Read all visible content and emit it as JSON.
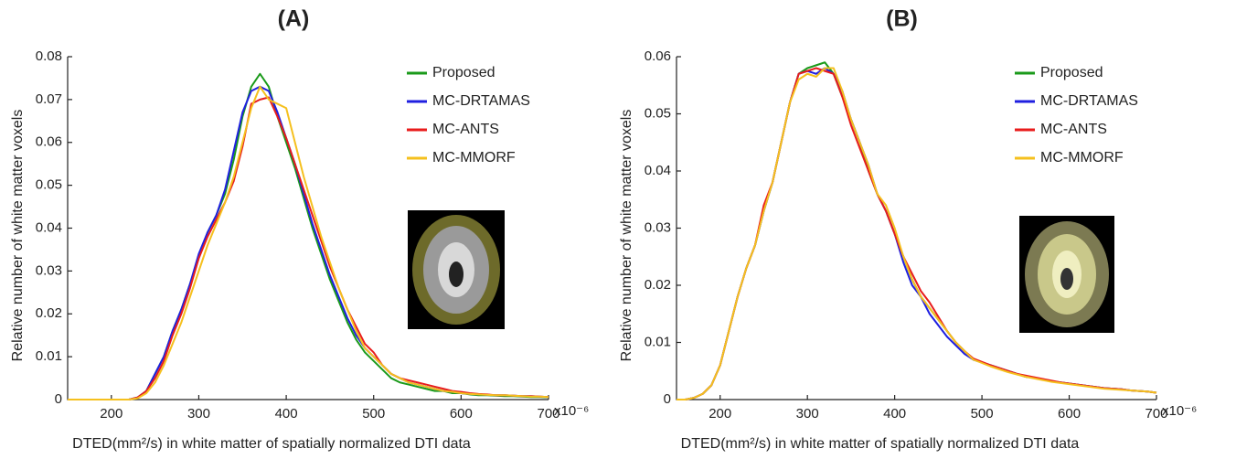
{
  "chart_data": [
    {
      "type": "line",
      "title": "(A)",
      "xlabel": "DTED(mm²/s) in white matter of spatially normalized DTI data",
      "xlabel_offset": "x10⁻⁶",
      "ylabel": "Relative number of white matter voxels",
      "xlim": [
        150,
        700
      ],
      "xticks": [
        200,
        300,
        400,
        500,
        600,
        700
      ],
      "ylim": [
        0,
        0.08
      ],
      "yticks": [
        0,
        0.01,
        0.02,
        0.03,
        0.04,
        0.05,
        0.06,
        0.07,
        0.08
      ],
      "legend": "upper right",
      "x": [
        150,
        160,
        170,
        180,
        190,
        200,
        210,
        220,
        230,
        240,
        250,
        260,
        270,
        280,
        290,
        300,
        310,
        320,
        330,
        340,
        350,
        360,
        370,
        380,
        390,
        400,
        410,
        420,
        430,
        440,
        450,
        460,
        470,
        480,
        490,
        500,
        510,
        520,
        530,
        540,
        550,
        560,
        570,
        580,
        590,
        600,
        610,
        620,
        630,
        640,
        650,
        660,
        670,
        680,
        690,
        700
      ],
      "series": [
        {
          "name": "Proposed",
          "color": "#1a9a1a",
          "values": [
            0,
            0,
            0,
            0,
            0,
            0,
            0,
            0,
            0.0005,
            0.002,
            0.006,
            0.01,
            0.016,
            0.021,
            0.027,
            0.033,
            0.039,
            0.043,
            0.048,
            0.056,
            0.066,
            0.073,
            0.076,
            0.073,
            0.066,
            0.06,
            0.054,
            0.047,
            0.04,
            0.034,
            0.028,
            0.023,
            0.018,
            0.014,
            0.011,
            0.009,
            0.007,
            0.005,
            0.004,
            0.0035,
            0.003,
            0.0025,
            0.002,
            0.002,
            0.0015,
            0.0015,
            0.0012,
            0.001,
            0.001,
            0.0009,
            0.0008,
            0.0008,
            0.0007,
            0.0006,
            0.0006,
            0.0005
          ]
        },
        {
          "name": "MC-DRTAMAS",
          "color": "#1f1fe0",
          "values": [
            0,
            0,
            0,
            0,
            0,
            0,
            0,
            0,
            0.0005,
            0.002,
            0.006,
            0.01,
            0.016,
            0.021,
            0.027,
            0.034,
            0.039,
            0.043,
            0.049,
            0.058,
            0.067,
            0.072,
            0.073,
            0.072,
            0.067,
            0.061,
            0.055,
            0.048,
            0.041,
            0.035,
            0.029,
            0.024,
            0.019,
            0.015,
            0.012,
            0.01,
            0.008,
            0.006,
            0.005,
            0.004,
            0.0035,
            0.003,
            0.0025,
            0.002,
            0.0018,
            0.0015,
            0.0013,
            0.0012,
            0.0011,
            0.001,
            0.001,
            0.0009,
            0.0008,
            0.0008,
            0.0007,
            0.0006
          ]
        },
        {
          "name": "MC-ANTS",
          "color": "#e81c1c",
          "values": [
            0,
            0,
            0,
            0,
            0,
            0,
            0,
            0,
            0.0005,
            0.002,
            0.005,
            0.009,
            0.015,
            0.02,
            0.026,
            0.033,
            0.038,
            0.042,
            0.046,
            0.051,
            0.059,
            0.069,
            0.07,
            0.0705,
            0.066,
            0.061,
            0.055,
            0.049,
            0.043,
            0.037,
            0.031,
            0.026,
            0.021,
            0.017,
            0.013,
            0.011,
            0.008,
            0.006,
            0.005,
            0.0045,
            0.004,
            0.0035,
            0.003,
            0.0025,
            0.002,
            0.0018,
            0.0015,
            0.0013,
            0.0012,
            0.001,
            0.001,
            0.0009,
            0.0008,
            0.0008,
            0.0007,
            0.0006
          ]
        },
        {
          "name": "MC-MMORF",
          "color": "#f5c01e",
          "values": [
            0,
            0,
            0,
            0,
            0,
            0,
            0,
            0,
            0.0003,
            0.0015,
            0.004,
            0.008,
            0.013,
            0.018,
            0.024,
            0.03,
            0.036,
            0.041,
            0.046,
            0.052,
            0.06,
            0.068,
            0.073,
            0.07,
            0.069,
            0.068,
            0.06,
            0.052,
            0.045,
            0.038,
            0.032,
            0.026,
            0.021,
            0.016,
            0.012,
            0.01,
            0.008,
            0.006,
            0.005,
            0.004,
            0.0035,
            0.003,
            0.0025,
            0.002,
            0.0018,
            0.0015,
            0.0013,
            0.0012,
            0.0011,
            0.001,
            0.001,
            0.0009,
            0.0008,
            0.0007,
            0.0007,
            0.0006
          ]
        }
      ]
    },
    {
      "type": "line",
      "title": "(B)",
      "xlabel": "DTED(mm²/s) in white matter of spatially normalized DTI data",
      "xlabel_offset": "x10⁻⁶",
      "ylabel": "Relative number of white matter voxels",
      "xlim": [
        150,
        700
      ],
      "xticks": [
        200,
        300,
        400,
        500,
        600,
        700
      ],
      "ylim": [
        0,
        0.06
      ],
      "yticks": [
        0,
        0.01,
        0.02,
        0.03,
        0.04,
        0.05,
        0.06
      ],
      "legend": "upper right",
      "x": [
        150,
        160,
        170,
        180,
        190,
        200,
        210,
        220,
        230,
        240,
        250,
        260,
        270,
        280,
        290,
        300,
        310,
        320,
        330,
        340,
        350,
        360,
        370,
        380,
        390,
        400,
        410,
        420,
        430,
        440,
        450,
        460,
        470,
        480,
        490,
        500,
        510,
        520,
        530,
        540,
        550,
        560,
        570,
        580,
        590,
        600,
        610,
        620,
        630,
        640,
        650,
        660,
        670,
        680,
        690,
        700
      ],
      "series": [
        {
          "name": "Proposed",
          "color": "#1a9a1a",
          "values": [
            0,
            0,
            0.0003,
            0.001,
            0.0025,
            0.006,
            0.012,
            0.018,
            0.023,
            0.027,
            0.033,
            0.038,
            0.045,
            0.052,
            0.057,
            0.058,
            0.0585,
            0.059,
            0.057,
            0.053,
            0.049,
            0.045,
            0.04,
            0.036,
            0.033,
            0.029,
            0.025,
            0.021,
            0.018,
            0.016,
            0.014,
            0.012,
            0.01,
            0.0085,
            0.007,
            0.0065,
            0.006,
            0.0055,
            0.005,
            0.0045,
            0.004,
            0.0038,
            0.0035,
            0.0032,
            0.003,
            0.0028,
            0.0026,
            0.0024,
            0.0022,
            0.002,
            0.0019,
            0.0018,
            0.0016,
            0.0015,
            0.0014,
            0.0012
          ]
        },
        {
          "name": "MC-DRTAMAS",
          "color": "#1f1fe0",
          "values": [
            0,
            0,
            0.0003,
            0.001,
            0.0025,
            0.006,
            0.012,
            0.018,
            0.023,
            0.027,
            0.033,
            0.038,
            0.045,
            0.052,
            0.057,
            0.0575,
            0.057,
            0.058,
            0.057,
            0.054,
            0.049,
            0.045,
            0.041,
            0.036,
            0.033,
            0.029,
            0.024,
            0.02,
            0.018,
            0.015,
            0.013,
            0.011,
            0.0095,
            0.008,
            0.007,
            0.0065,
            0.006,
            0.0055,
            0.005,
            0.0045,
            0.004,
            0.0038,
            0.0035,
            0.0032,
            0.003,
            0.0028,
            0.0026,
            0.0024,
            0.0022,
            0.002,
            0.0019,
            0.0018,
            0.0016,
            0.0015,
            0.0014,
            0.0012
          ]
        },
        {
          "name": "MC-ANTS",
          "color": "#e81c1c",
          "values": [
            0,
            0,
            0.0003,
            0.001,
            0.0025,
            0.006,
            0.012,
            0.018,
            0.023,
            0.027,
            0.034,
            0.038,
            0.045,
            0.052,
            0.057,
            0.0575,
            0.058,
            0.0575,
            0.057,
            0.053,
            0.048,
            0.044,
            0.04,
            0.036,
            0.033,
            0.029,
            0.025,
            0.022,
            0.019,
            0.017,
            0.0145,
            0.012,
            0.01,
            0.0085,
            0.0072,
            0.0066,
            0.006,
            0.0055,
            0.005,
            0.0045,
            0.0042,
            0.0039,
            0.0036,
            0.0033,
            0.003,
            0.0028,
            0.0026,
            0.0024,
            0.0022,
            0.002,
            0.0019,
            0.0018,
            0.0016,
            0.0015,
            0.0014,
            0.0012
          ]
        },
        {
          "name": "MC-MMORF",
          "color": "#f5c01e",
          "values": [
            0,
            0,
            0.0003,
            0.001,
            0.0025,
            0.006,
            0.012,
            0.018,
            0.023,
            0.027,
            0.033,
            0.038,
            0.045,
            0.052,
            0.056,
            0.057,
            0.0565,
            0.058,
            0.058,
            0.054,
            0.049,
            0.045,
            0.041,
            0.036,
            0.034,
            0.03,
            0.025,
            0.021,
            0.018,
            0.016,
            0.014,
            0.012,
            0.01,
            0.0085,
            0.007,
            0.0064,
            0.0058,
            0.0053,
            0.0048,
            0.0044,
            0.004,
            0.0037,
            0.0034,
            0.0031,
            0.0029,
            0.0027,
            0.0025,
            0.0023,
            0.0021,
            0.0019,
            0.0018,
            0.0017,
            0.0016,
            0.0015,
            0.0014,
            0.0012
          ]
        }
      ]
    }
  ]
}
